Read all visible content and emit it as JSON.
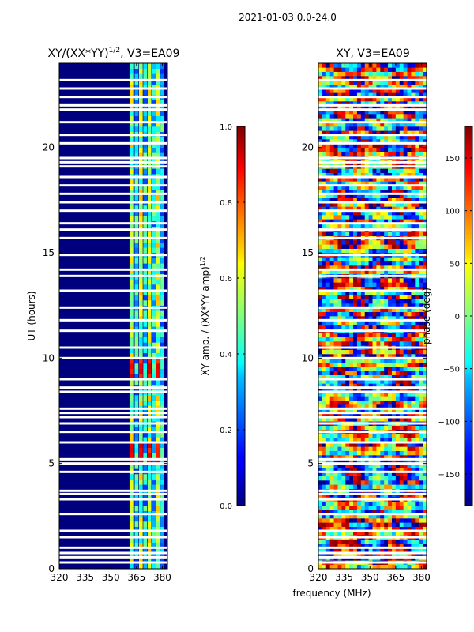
{
  "chart_data": {
    "suptitle": "2021-01-03 0.0-24.0",
    "xlabel": "frequency (MHz)",
    "panels": [
      {
        "type": "heatmap",
        "title": "XY/(XX*YY)",
        "title_sup": "1/2",
        "title_suffix": ", V3=EA09",
        "ylabel": "UT (hours)",
        "xlim": [
          320,
          383
        ],
        "ylim": [
          0,
          24
        ],
        "xticks": [
          320,
          335,
          350,
          365,
          380
        ],
        "yticks": [
          0,
          5,
          10,
          15,
          20
        ],
        "colormap": "jet",
        "colorbar": {
          "label": "XY amp. / (XX*YY amp)",
          "label_sup": "1/2",
          "range": [
            0.0,
            1.0
          ],
          "ticks": [
            "0.0",
            "0.2",
            "0.4",
            "0.6",
            "0.8",
            "1.0"
          ],
          "tick_values": [
            0.0,
            0.2,
            0.4,
            0.6,
            0.8,
            1.0
          ]
        },
        "band_columns_mhz": [
          362,
          365,
          367.5,
          370,
          372.5,
          375,
          377.5,
          380
        ],
        "hot_times_h": [
          5.5,
          9.4
        ]
      },
      {
        "type": "heatmap",
        "title": "XY, V3=EA09",
        "ylim": [
          0,
          24
        ],
        "xlim": [
          320,
          383
        ],
        "xticks": [
          320,
          335,
          350,
          365,
          380
        ],
        "yticks": [
          0,
          5,
          10,
          15,
          20
        ],
        "colormap": "jet",
        "colorbar": {
          "label": "phase (deg)",
          "range": [
            -180,
            180
          ],
          "ticks": [
            "−150",
            "−100",
            "−50",
            "0",
            "50",
            "100",
            "150"
          ],
          "tick_values": [
            -150,
            -100,
            -50,
            0,
            50,
            100,
            150
          ]
        }
      }
    ],
    "flagged_hours": [
      0.3,
      0.55,
      0.75,
      1.0,
      1.5,
      1.8,
      2.6,
      3.3,
      3.55,
      3.7,
      4.6,
      5.0,
      5.2,
      6.0,
      6.5,
      6.9,
      7.2,
      7.4,
      7.6,
      8.4,
      8.6,
      9.0,
      10.0,
      10.5,
      11.3,
      11.8,
      12.4,
      13.2,
      13.9,
      14.2,
      14.9,
      15.7,
      16.1,
      16.4,
      17.0,
      17.4,
      17.8,
      18.2,
      18.6,
      19.1,
      19.3,
      19.5,
      20.2,
      20.6,
      21.2,
      21.8,
      22.0,
      22.4,
      22.8,
      23.2
    ]
  }
}
